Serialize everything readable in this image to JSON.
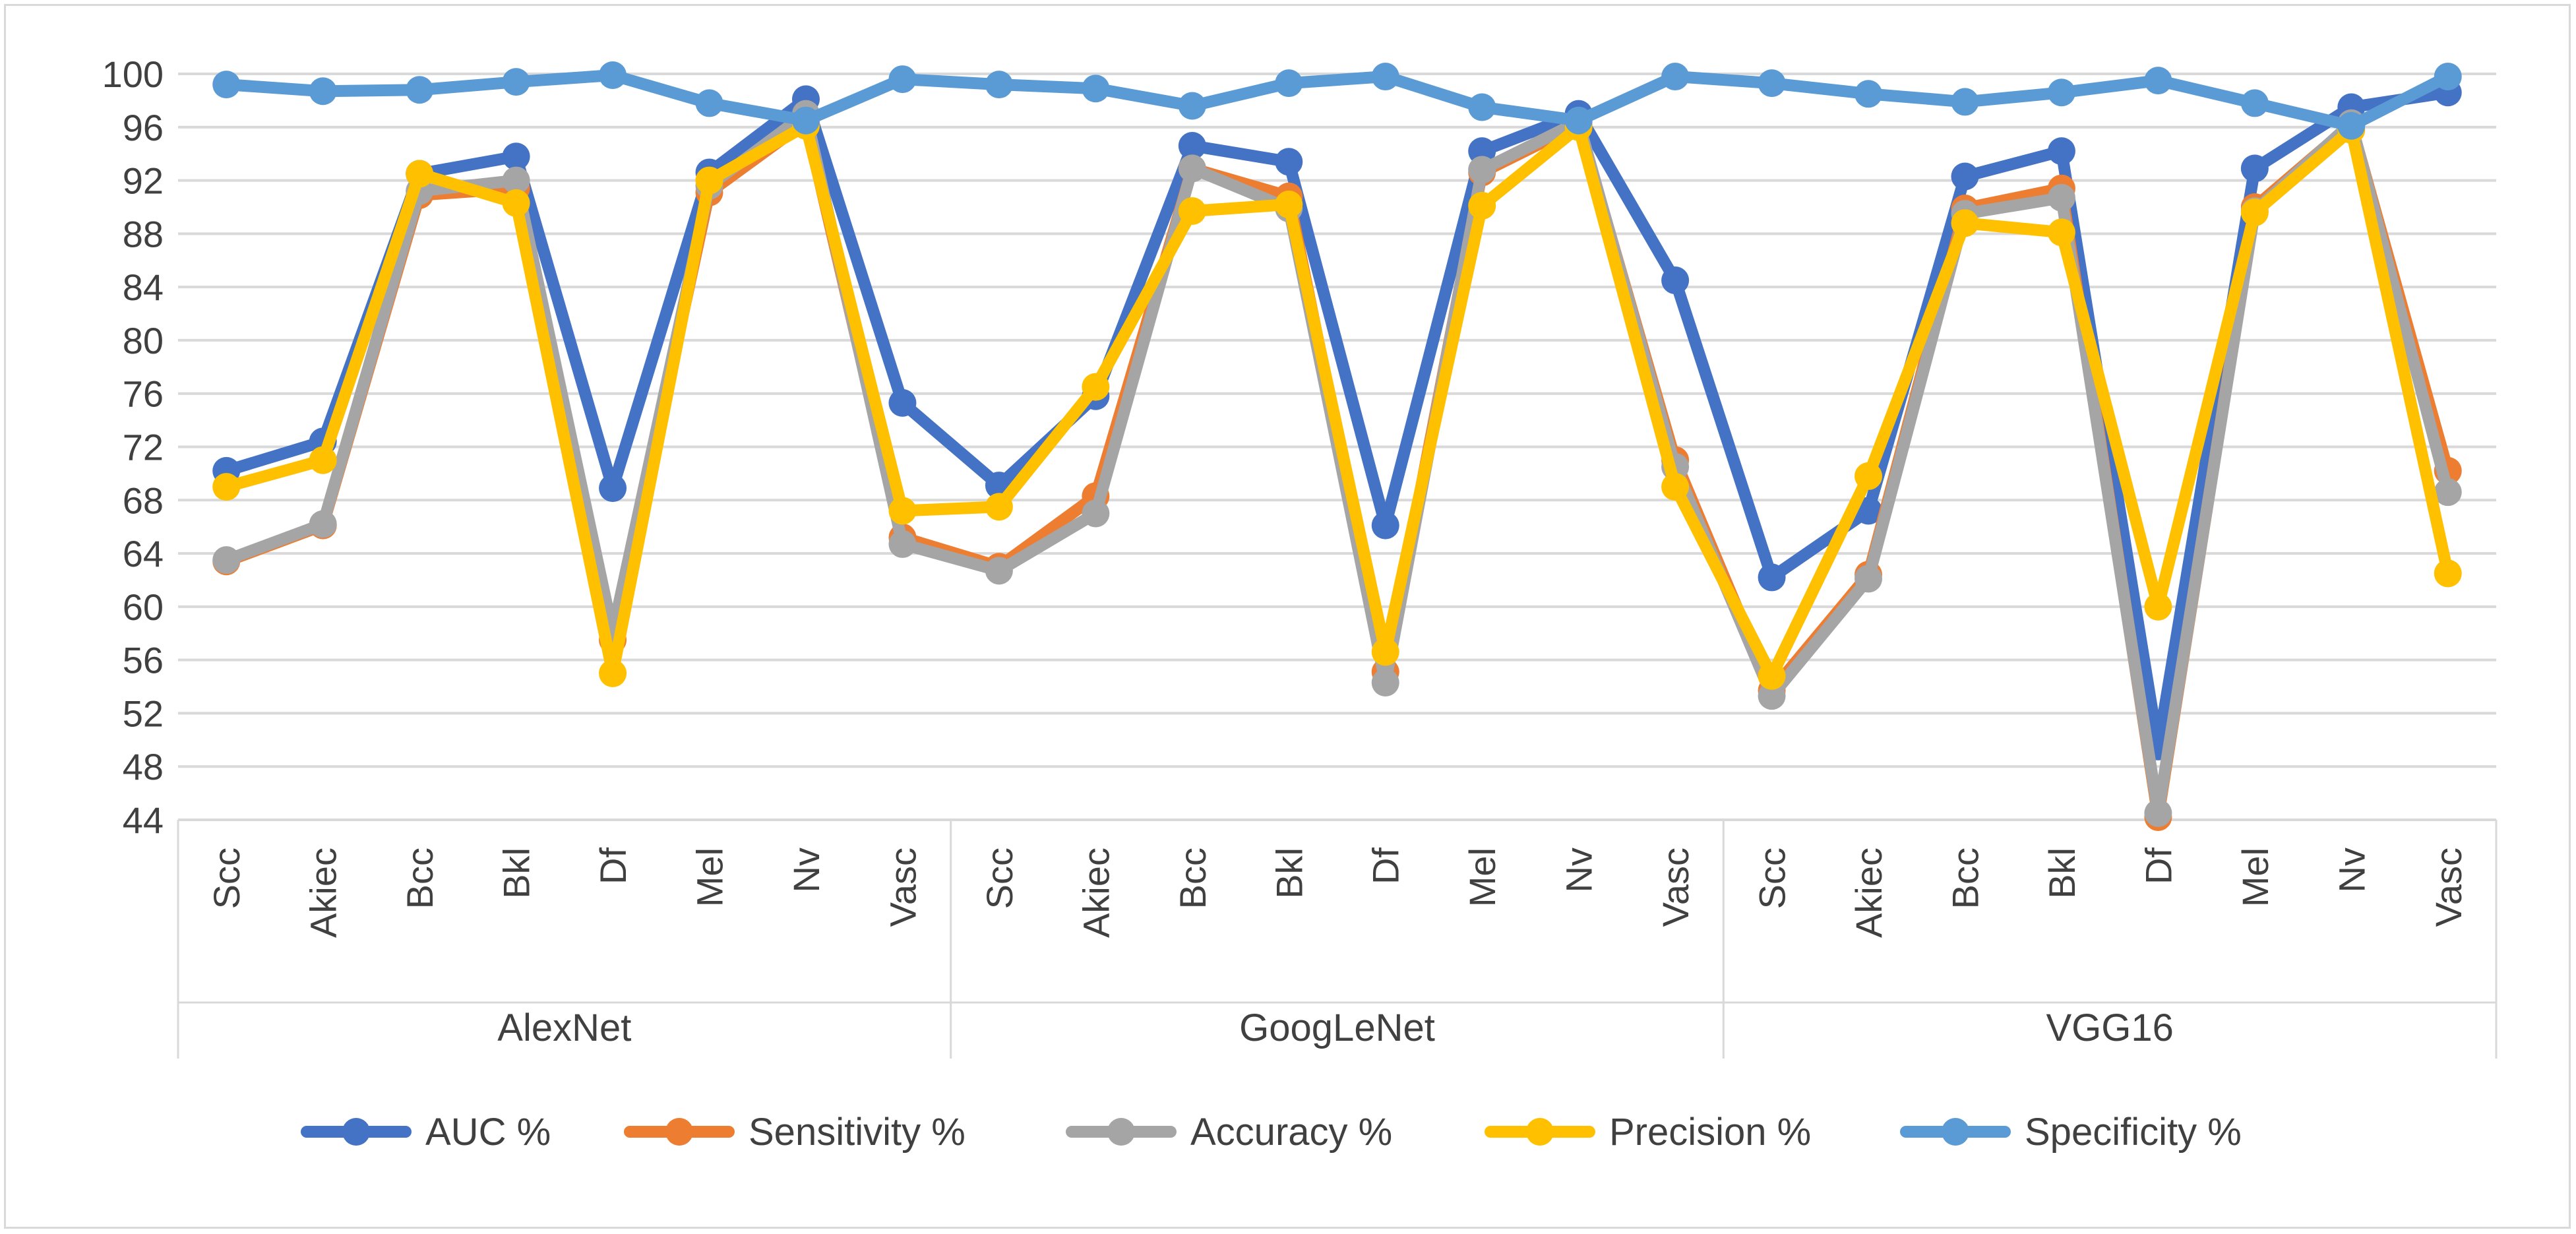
{
  "chart_data": {
    "type": "line",
    "title": "",
    "xlabel": "",
    "ylabel": "",
    "ylim": [
      44,
      100
    ],
    "yticks": [
      44,
      48,
      52,
      56,
      60,
      64,
      68,
      72,
      76,
      80,
      84,
      88,
      92,
      96,
      100
    ],
    "grid": true,
    "legend_position": "bottom",
    "groups": [
      {
        "name": "AlexNet",
        "categories": [
          "Scc",
          "Akiec",
          "Bcc",
          "Bkl",
          "Df",
          "Mel",
          "Nv",
          "Vasc"
        ]
      },
      {
        "name": "GoogLeNet",
        "categories": [
          "Scc",
          "Akiec",
          "Bcc",
          "Bkl",
          "Df",
          "Mel",
          "Nv",
          "Vasc"
        ]
      },
      {
        "name": "VGG16",
        "categories": [
          "Scc",
          "Akiec",
          "Bcc",
          "Bkl",
          "Df",
          "Mel",
          "Nv",
          "Vasc"
        ]
      }
    ],
    "series": [
      {
        "name": "AUC %",
        "color": "#4472c4",
        "values": [
          70.2,
          72.4,
          92.5,
          93.8,
          68.9,
          92.6,
          98.1,
          75.3,
          69.1,
          75.8,
          94.6,
          93.4,
          66.1,
          94.2,
          97.0,
          84.5,
          62.2,
          67.2,
          92.3,
          94.2,
          49.5,
          92.9,
          97.5,
          98.6
        ]
      },
      {
        "name": "Sensitivity %",
        "color": "#ed7d31",
        "values": [
          63.4,
          66.1,
          90.9,
          91.4,
          57.5,
          91.1,
          96.4,
          65.2,
          63.0,
          68.3,
          92.9,
          90.8,
          55.1,
          92.6,
          96.2,
          71.0,
          53.7,
          62.4,
          89.9,
          91.4,
          44.2,
          90.0,
          96.2,
          70.2
        ]
      },
      {
        "name": "Accuracy %",
        "color": "#a5a5a5",
        "values": [
          63.5,
          66.2,
          91.2,
          92.0,
          58.1,
          91.6,
          97.0,
          64.7,
          62.7,
          67.0,
          92.9,
          89.9,
          54.3,
          92.8,
          96.4,
          70.5,
          53.3,
          62.1,
          89.5,
          90.7,
          44.5,
          89.7,
          96.3,
          68.6
        ]
      },
      {
        "name": "Precision %",
        "color": "#ffc000",
        "values": [
          69.0,
          71.0,
          92.5,
          90.3,
          55.0,
          92.0,
          96.1,
          67.2,
          67.5,
          76.5,
          89.7,
          90.2,
          56.6,
          90.1,
          96.0,
          69.0,
          54.8,
          69.8,
          88.8,
          88.1,
          60.0,
          89.6,
          95.8,
          62.5
        ]
      },
      {
        "name": "Specificity %",
        "color": "#5b9bd5",
        "values": [
          99.2,
          98.7,
          98.8,
          99.4,
          99.9,
          97.8,
          96.5,
          99.6,
          99.2,
          98.9,
          97.6,
          99.3,
          99.8,
          97.5,
          96.5,
          99.8,
          99.3,
          98.5,
          97.9,
          98.6,
          99.5,
          97.8,
          96.1,
          99.8
        ]
      }
    ]
  }
}
